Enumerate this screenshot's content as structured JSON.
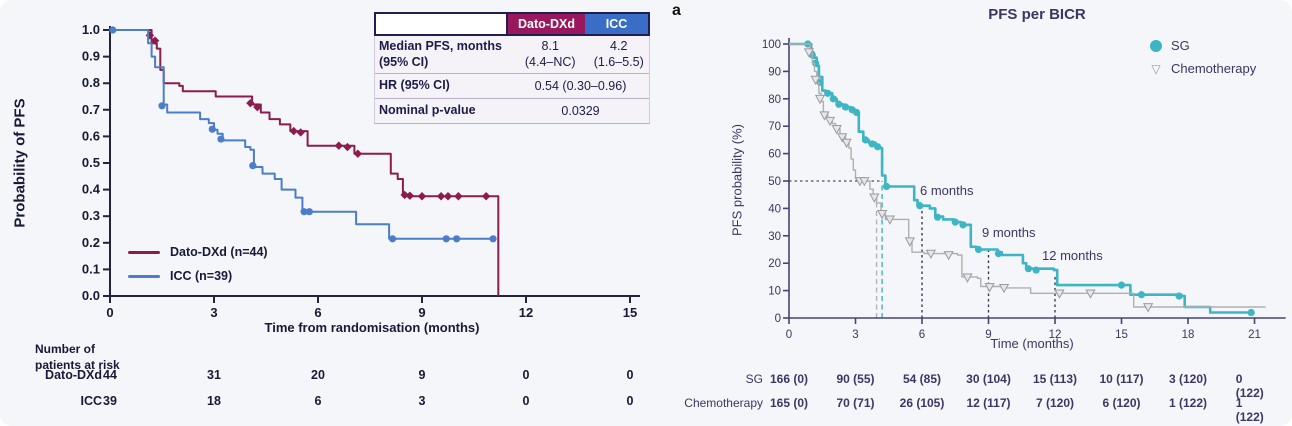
{
  "chart_data": [
    {
      "id": "dato-dxd-vs-icc-km",
      "type": "line",
      "subtype": "kaplan-meier",
      "ylabel": "Probability of PFS",
      "xlabel": "Time from randomisation (months)",
      "xlim": [
        0,
        15
      ],
      "ylim": [
        0.0,
        1.0
      ],
      "xticks": [
        0,
        3,
        6,
        9,
        12,
        15
      ],
      "ytick_labels": [
        "1.0",
        "0.9",
        "0.8",
        "0.7",
        "0.6",
        "0.5",
        "0.4",
        "0.3",
        "0.2",
        "0.1",
        "0.0"
      ],
      "grid": false,
      "legend_position": "lower-left",
      "series": [
        {
          "name": "Dato-DXd (n=44)",
          "color": "#8b1d4d",
          "marker": "diamond",
          "points": [
            [
              0,
              1.0
            ],
            [
              1.1,
              1.0
            ],
            [
              1.2,
              0.95
            ],
            [
              1.35,
              0.93
            ],
            [
              1.45,
              0.85
            ],
            [
              1.55,
              0.8
            ],
            [
              2.0,
              0.79
            ],
            [
              2.1,
              0.77
            ],
            [
              2.95,
              0.77
            ],
            [
              3.05,
              0.75
            ],
            [
              3.95,
              0.75
            ],
            [
              4.1,
              0.72
            ],
            [
              4.35,
              0.69
            ],
            [
              4.6,
              0.665
            ],
            [
              4.9,
              0.645
            ],
            [
              5.2,
              0.62
            ],
            [
              5.6,
              0.62
            ],
            [
              5.7,
              0.565
            ],
            [
              6.95,
              0.565
            ],
            [
              7.05,
              0.535
            ],
            [
              7.95,
              0.535
            ],
            [
              8.1,
              0.46
            ],
            [
              8.3,
              0.44
            ],
            [
              8.45,
              0.375
            ],
            [
              11.15,
              0.375
            ],
            [
              11.2,
              0.0
            ]
          ],
          "censors": [
            [
              1.15,
              0.98
            ],
            [
              1.3,
              0.96
            ],
            [
              4.05,
              0.725
            ],
            [
              4.25,
              0.71
            ],
            [
              5.3,
              0.62
            ],
            [
              5.5,
              0.615
            ],
            [
              6.6,
              0.565
            ],
            [
              6.85,
              0.56
            ],
            [
              7.15,
              0.535
            ],
            [
              8.5,
              0.38
            ],
            [
              8.65,
              0.377
            ],
            [
              9.0,
              0.375
            ],
            [
              9.55,
              0.375
            ],
            [
              9.75,
              0.375
            ],
            [
              10.05,
              0.375
            ],
            [
              10.85,
              0.375
            ]
          ]
        },
        {
          "name": "ICC (n=39)",
          "color": "#4b7dc8",
          "marker": "circle",
          "points": [
            [
              0,
              1.0
            ],
            [
              0.95,
              1.0
            ],
            [
              1.1,
              0.95
            ],
            [
              1.2,
              0.9
            ],
            [
              1.3,
              0.86
            ],
            [
              1.45,
              0.86
            ],
            [
              1.55,
              0.72
            ],
            [
              1.65,
              0.69
            ],
            [
              2.5,
              0.69
            ],
            [
              2.6,
              0.665
            ],
            [
              2.85,
              0.65
            ],
            [
              3.0,
              0.625
            ],
            [
              3.1,
              0.61
            ],
            [
              3.25,
              0.585
            ],
            [
              3.8,
              0.585
            ],
            [
              3.9,
              0.56
            ],
            [
              4.05,
              0.55
            ],
            [
              4.15,
              0.485
            ],
            [
              4.4,
              0.46
            ],
            [
              4.75,
              0.44
            ],
            [
              4.95,
              0.4
            ],
            [
              5.35,
              0.37
            ],
            [
              5.55,
              0.317
            ],
            [
              7.0,
              0.317
            ],
            [
              7.1,
              0.27
            ],
            [
              7.95,
              0.27
            ],
            [
              8.05,
              0.215
            ],
            [
              11.1,
              0.215
            ]
          ],
          "censors": [
            [
              0.08,
              1.0
            ],
            [
              1.5,
              0.715
            ],
            [
              2.95,
              0.627
            ],
            [
              3.2,
              0.59
            ],
            [
              4.12,
              0.49
            ],
            [
              5.6,
              0.317
            ],
            [
              5.75,
              0.317
            ],
            [
              8.15,
              0.215
            ],
            [
              9.7,
              0.215
            ],
            [
              10.0,
              0.215
            ],
            [
              11.05,
              0.215
            ]
          ]
        }
      ],
      "stats_table": {
        "header": {
          "dato": "Dato-DXd",
          "icc": "ICC"
        },
        "header_colors": {
          "dato": "#99175c",
          "icc": "#3a6ec6"
        },
        "median_row": {
          "label1": "Median PFS, months",
          "label2": "(95% CI)",
          "dato1": "8.1",
          "dato2": "(4.4–NC)",
          "icc1": "4.2",
          "icc2": "(1.6–5.5)"
        },
        "hr_row": {
          "label": "HR (95% CI)",
          "value": "0.54 (0.30–0.96)"
        },
        "p_row": {
          "label": "Nominal p-value",
          "value": "0.0329"
        }
      },
      "risk_table": {
        "title_line1": "Number of",
        "title_line2": "patients at risk",
        "rows": [
          {
            "label": "Dato-DXd",
            "values": [
              "44",
              "31",
              "20",
              "9",
              "0",
              "0"
            ]
          },
          {
            "label": "ICC",
            "values": [
              "39",
              "18",
              "6",
              "3",
              "0",
              "0"
            ]
          }
        ]
      }
    },
    {
      "id": "sg-vs-chemo-km",
      "type": "line",
      "subtype": "kaplan-meier",
      "panel_label": "a",
      "title": "PFS per BICR",
      "ylabel": "PFS probability (%)",
      "xlabel": "Time (months)",
      "xlim": [
        0,
        22
      ],
      "ylim": [
        0,
        100
      ],
      "xticks": [
        0,
        3,
        6,
        9,
        12,
        15,
        18,
        21
      ],
      "yticks": [
        0,
        10,
        20,
        30,
        40,
        50,
        60,
        70,
        80,
        90,
        100
      ],
      "grid": false,
      "legend_position": "upper-right",
      "annotations": [
        {
          "text": "6 months",
          "t": 6,
          "p": 41
        },
        {
          "text": "9 months",
          "t": 9,
          "p": 25
        },
        {
          "text": "12 months",
          "t": 12,
          "p": 15.5
        }
      ],
      "reference_lines": [
        {
          "type": "h",
          "p": 50,
          "t0": 0,
          "t1": 4.2,
          "style": "dot",
          "color": "#4b4b66"
        },
        {
          "type": "v",
          "t": 3.95,
          "p_top": 42,
          "style": "dash",
          "color": "#b3b3b3"
        },
        {
          "type": "v",
          "t": 4.2,
          "p_top": 50,
          "style": "dash",
          "color": "#3cb5c5"
        },
        {
          "type": "v",
          "t": 6,
          "p_top": 41,
          "style": "dot",
          "color": "#3a3a55"
        },
        {
          "type": "v",
          "t": 9,
          "p_top": 25,
          "style": "dot",
          "color": "#3a3a55"
        },
        {
          "type": "v",
          "t": 12,
          "p_top": 15.5,
          "style": "dot",
          "color": "#3a3a55"
        }
      ],
      "series": [
        {
          "name": "SG",
          "color": "#3cb5c5",
          "marker": "circle",
          "points": [
            [
              0,
              100
            ],
            [
              0.85,
              100
            ],
            [
              1.0,
              97
            ],
            [
              1.1,
              95
            ],
            [
              1.25,
              92
            ],
            [
              1.35,
              88
            ],
            [
              1.5,
              83
            ],
            [
              1.65,
              82
            ],
            [
              1.95,
              80
            ],
            [
              2.15,
              78
            ],
            [
              2.45,
              77
            ],
            [
              2.75,
              76
            ],
            [
              3.0,
              75
            ],
            [
              3.15,
              68
            ],
            [
              3.35,
              65
            ],
            [
              3.6,
              64
            ],
            [
              3.9,
              63
            ],
            [
              4.05,
              62
            ],
            [
              4.2,
              52
            ],
            [
              4.35,
              48
            ],
            [
              5.5,
              48
            ],
            [
              5.65,
              43
            ],
            [
              5.8,
              41
            ],
            [
              6.35,
              40
            ],
            [
              6.6,
              37
            ],
            [
              6.95,
              36
            ],
            [
              7.45,
              35
            ],
            [
              7.75,
              34
            ],
            [
              8.2,
              26
            ],
            [
              8.45,
              25
            ],
            [
              9.4,
              24
            ],
            [
              9.6,
              23
            ],
            [
              10.55,
              20
            ],
            [
              10.7,
              18
            ],
            [
              11.95,
              17.5
            ],
            [
              12.1,
              12
            ],
            [
              15.25,
              12
            ],
            [
              15.4,
              8.5
            ],
            [
              17.7,
              8
            ],
            [
              17.85,
              4
            ],
            [
              18.85,
              4
            ],
            [
              19.0,
              2
            ],
            [
              20.9,
              2
            ]
          ],
          "censors": [
            [
              0.85,
              100
            ],
            [
              1.05,
              96
            ],
            [
              1.2,
              93
            ],
            [
              1.4,
              86
            ],
            [
              1.75,
              82
            ],
            [
              2.0,
              80
            ],
            [
              2.25,
              78
            ],
            [
              2.55,
              77
            ],
            [
              2.85,
              76
            ],
            [
              3.05,
              75
            ],
            [
              3.45,
              65
            ],
            [
              3.75,
              63.5
            ],
            [
              4.0,
              62.5
            ],
            [
              4.4,
              48
            ],
            [
              5.9,
              41
            ],
            [
              6.7,
              36.8
            ],
            [
              7.5,
              35
            ],
            [
              7.85,
              34
            ],
            [
              8.55,
              25
            ],
            [
              9.45,
              23.5
            ],
            [
              10.8,
              18
            ],
            [
              11.15,
              17.5
            ],
            [
              15.0,
              12
            ],
            [
              15.9,
              8.5
            ],
            [
              17.6,
              8
            ],
            [
              20.85,
              2
            ]
          ]
        },
        {
          "name": "Chemotherapy",
          "color": "#b0afaf",
          "marker": "triangle-down",
          "points": [
            [
              0,
              100
            ],
            [
              0.8,
              100
            ],
            [
              0.95,
              97
            ],
            [
              1.05,
              93
            ],
            [
              1.15,
              90
            ],
            [
              1.25,
              86
            ],
            [
              1.35,
              82
            ],
            [
              1.45,
              79
            ],
            [
              1.55,
              75
            ],
            [
              1.75,
              73
            ],
            [
              1.95,
              71
            ],
            [
              2.1,
              69
            ],
            [
              2.3,
              67
            ],
            [
              2.55,
              65
            ],
            [
              2.7,
              62
            ],
            [
              2.8,
              58
            ],
            [
              2.9,
              54
            ],
            [
              3.0,
              51
            ],
            [
              3.5,
              50
            ],
            [
              3.65,
              47
            ],
            [
              3.8,
              44
            ],
            [
              3.95,
              42
            ],
            [
              4.15,
              38
            ],
            [
              4.35,
              36
            ],
            [
              5.25,
              36
            ],
            [
              5.4,
              29
            ],
            [
              5.55,
              24
            ],
            [
              6.1,
              23.5
            ],
            [
              7.6,
              23
            ],
            [
              7.8,
              15
            ],
            [
              8.5,
              14.5
            ],
            [
              8.65,
              11.5
            ],
            [
              9.6,
              11
            ],
            [
              10.9,
              9
            ],
            [
              15.35,
              9
            ],
            [
              15.55,
              4
            ],
            [
              21.5,
              4
            ]
          ],
          "censors": [
            [
              0.9,
              97
            ],
            [
              1.2,
              87
            ],
            [
              1.4,
              80
            ],
            [
              1.6,
              74
            ],
            [
              1.85,
              72
            ],
            [
              2.15,
              69
            ],
            [
              2.4,
              66
            ],
            [
              2.6,
              64
            ],
            [
              3.2,
              50
            ],
            [
              3.4,
              50
            ],
            [
              3.85,
              44
            ],
            [
              4.2,
              38
            ],
            [
              4.55,
              36
            ],
            [
              5.45,
              28
            ],
            [
              6.4,
              23.5
            ],
            [
              7.2,
              23
            ],
            [
              8.05,
              14.8
            ],
            [
              9.05,
              11.3
            ],
            [
              9.7,
              11
            ],
            [
              12.2,
              9
            ],
            [
              13.6,
              9
            ],
            [
              16.2,
              4
            ]
          ]
        }
      ],
      "risk_table": {
        "rows": [
          {
            "label": "SG",
            "values": [
              "166 (0)",
              "90 (55)",
              "54 (85)",
              "30 (104)",
              "15 (113)",
              "10 (117)",
              "3 (120)",
              "0 (122)"
            ]
          },
          {
            "label": "Chemotherapy",
            "values": [
              "165 (0)",
              "70 (71)",
              "26 (105)",
              "12 (117)",
              "7 (120)",
              "6 (120)",
              "1 (122)",
              "1 (122)"
            ]
          }
        ]
      }
    }
  ]
}
